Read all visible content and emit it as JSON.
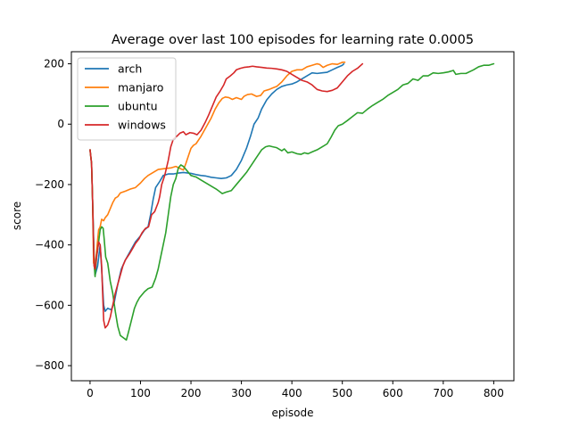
{
  "chart_data": {
    "type": "line",
    "title": "Average over last 100 episodes for learning rate 0.0005",
    "xlabel": "episode",
    "ylabel": "score",
    "xlim": [
      -37,
      840
    ],
    "ylim": [
      -850,
      240
    ],
    "xticks": [
      0,
      100,
      200,
      300,
      400,
      500,
      600,
      700,
      800
    ],
    "yticks": [
      -800,
      -600,
      -400,
      -200,
      0,
      200
    ],
    "grid": false,
    "legend_position": "top-left",
    "series": [
      {
        "name": "arch",
        "color": "#1f77b4",
        "points": [
          [
            0,
            -85
          ],
          [
            3,
            -130
          ],
          [
            5,
            -250
          ],
          [
            8,
            -440
          ],
          [
            10,
            -500
          ],
          [
            15,
            -470
          ],
          [
            20,
            -400
          ],
          [
            23,
            -480
          ],
          [
            27,
            -600
          ],
          [
            30,
            -620
          ],
          [
            35,
            -610
          ],
          [
            42,
            -615
          ],
          [
            48,
            -590
          ],
          [
            55,
            -530
          ],
          [
            62,
            -480
          ],
          [
            70,
            -450
          ],
          [
            80,
            -420
          ],
          [
            90,
            -390
          ],
          [
            100,
            -370
          ],
          [
            108,
            -350
          ],
          [
            115,
            -340
          ],
          [
            120,
            -300
          ],
          [
            125,
            -250
          ],
          [
            130,
            -210
          ],
          [
            138,
            -190
          ],
          [
            145,
            -170
          ],
          [
            155,
            -165
          ],
          [
            165,
            -165
          ],
          [
            175,
            -162
          ],
          [
            185,
            -160
          ],
          [
            200,
            -163
          ],
          [
            210,
            -167
          ],
          [
            220,
            -170
          ],
          [
            230,
            -172
          ],
          [
            240,
            -176
          ],
          [
            250,
            -178
          ],
          [
            260,
            -180
          ],
          [
            270,
            -178
          ],
          [
            280,
            -170
          ],
          [
            290,
            -150
          ],
          [
            300,
            -120
          ],
          [
            310,
            -80
          ],
          [
            318,
            -40
          ],
          [
            325,
            0
          ],
          [
            333,
            20
          ],
          [
            340,
            50
          ],
          [
            350,
            80
          ],
          [
            360,
            100
          ],
          [
            370,
            115
          ],
          [
            380,
            125
          ],
          [
            390,
            130
          ],
          [
            400,
            133
          ],
          [
            410,
            140
          ],
          [
            420,
            150
          ],
          [
            430,
            160
          ],
          [
            440,
            170
          ],
          [
            450,
            168
          ],
          [
            460,
            170
          ],
          [
            470,
            172
          ],
          [
            480,
            180
          ],
          [
            490,
            188
          ],
          [
            500,
            195
          ],
          [
            503,
            200
          ]
        ]
      },
      {
        "name": "manjaro",
        "color": "#ff7f0e",
        "points": [
          [
            0,
            -85
          ],
          [
            3,
            -130
          ],
          [
            5,
            -250
          ],
          [
            7,
            -460
          ],
          [
            10,
            -470
          ],
          [
            13,
            -420
          ],
          [
            17,
            -350
          ],
          [
            20,
            -340
          ],
          [
            23,
            -315
          ],
          [
            27,
            -320
          ],
          [
            30,
            -310
          ],
          [
            35,
            -300
          ],
          [
            40,
            -280
          ],
          [
            45,
            -260
          ],
          [
            50,
            -245
          ],
          [
            55,
            -240
          ],
          [
            60,
            -228
          ],
          [
            70,
            -222
          ],
          [
            80,
            -215
          ],
          [
            90,
            -210
          ],
          [
            100,
            -195
          ],
          [
            108,
            -180
          ],
          [
            115,
            -170
          ],
          [
            125,
            -160
          ],
          [
            135,
            -150
          ],
          [
            145,
            -148
          ],
          [
            160,
            -145
          ],
          [
            170,
            -140
          ],
          [
            180,
            -148
          ],
          [
            185,
            -152
          ],
          [
            190,
            -130
          ],
          [
            195,
            -105
          ],
          [
            200,
            -80
          ],
          [
            205,
            -70
          ],
          [
            210,
            -65
          ],
          [
            220,
            -40
          ],
          [
            230,
            -10
          ],
          [
            240,
            20
          ],
          [
            248,
            50
          ],
          [
            255,
            70
          ],
          [
            262,
            85
          ],
          [
            268,
            90
          ],
          [
            275,
            88
          ],
          [
            282,
            82
          ],
          [
            290,
            88
          ],
          [
            300,
            82
          ],
          [
            305,
            92
          ],
          [
            312,
            98
          ],
          [
            320,
            100
          ],
          [
            330,
            92
          ],
          [
            338,
            95
          ],
          [
            345,
            110
          ],
          [
            355,
            115
          ],
          [
            362,
            120
          ],
          [
            370,
            125
          ],
          [
            380,
            140
          ],
          [
            390,
            160
          ],
          [
            400,
            175
          ],
          [
            410,
            180
          ],
          [
            420,
            180
          ],
          [
            430,
            190
          ],
          [
            440,
            195
          ],
          [
            450,
            200
          ],
          [
            455,
            198
          ],
          [
            462,
            188
          ],
          [
            470,
            195
          ],
          [
            480,
            200
          ],
          [
            490,
            198
          ],
          [
            500,
            205
          ],
          [
            505,
            205
          ]
        ]
      },
      {
        "name": "ubuntu",
        "color": "#2ca02c",
        "points": [
          [
            0,
            -85
          ],
          [
            3,
            -130
          ],
          [
            5,
            -250
          ],
          [
            8,
            -460
          ],
          [
            10,
            -505
          ],
          [
            13,
            -440
          ],
          [
            17,
            -390
          ],
          [
            20,
            -350
          ],
          [
            23,
            -340
          ],
          [
            26,
            -345
          ],
          [
            28,
            -380
          ],
          [
            31,
            -440
          ],
          [
            35,
            -460
          ],
          [
            40,
            -520
          ],
          [
            45,
            -560
          ],
          [
            50,
            -620
          ],
          [
            55,
            -670
          ],
          [
            60,
            -700
          ],
          [
            68,
            -710
          ],
          [
            72,
            -715
          ],
          [
            76,
            -690
          ],
          [
            82,
            -650
          ],
          [
            88,
            -610
          ],
          [
            93,
            -590
          ],
          [
            98,
            -575
          ],
          [
            103,
            -565
          ],
          [
            108,
            -555
          ],
          [
            115,
            -545
          ],
          [
            123,
            -540
          ],
          [
            130,
            -510
          ],
          [
            135,
            -480
          ],
          [
            140,
            -440
          ],
          [
            145,
            -400
          ],
          [
            150,
            -360
          ],
          [
            155,
            -300
          ],
          [
            160,
            -240
          ],
          [
            165,
            -200
          ],
          [
            170,
            -180
          ],
          [
            175,
            -145
          ],
          [
            180,
            -135
          ],
          [
            185,
            -140
          ],
          [
            190,
            -150
          ],
          [
            200,
            -170
          ],
          [
            210,
            -175
          ],
          [
            220,
            -185
          ],
          [
            230,
            -195
          ],
          [
            240,
            -205
          ],
          [
            250,
            -215
          ],
          [
            258,
            -225
          ],
          [
            262,
            -230
          ],
          [
            270,
            -225
          ],
          [
            280,
            -220
          ],
          [
            290,
            -200
          ],
          [
            300,
            -180
          ],
          [
            310,
            -160
          ],
          [
            320,
            -135
          ],
          [
            330,
            -110
          ],
          [
            340,
            -85
          ],
          [
            348,
            -75
          ],
          [
            355,
            -72
          ],
          [
            362,
            -75
          ],
          [
            370,
            -78
          ],
          [
            380,
            -88
          ],
          [
            385,
            -82
          ],
          [
            392,
            -95
          ],
          [
            400,
            -92
          ],
          [
            410,
            -98
          ],
          [
            418,
            -100
          ],
          [
            425,
            -95
          ],
          [
            432,
            -98
          ],
          [
            440,
            -92
          ],
          [
            450,
            -85
          ],
          [
            460,
            -75
          ],
          [
            470,
            -65
          ],
          [
            478,
            -42
          ],
          [
            485,
            -20
          ],
          [
            492,
            -5
          ],
          [
            500,
            0
          ],
          [
            510,
            12
          ],
          [
            520,
            25
          ],
          [
            530,
            38
          ],
          [
            540,
            36
          ],
          [
            550,
            50
          ],
          [
            560,
            62
          ],
          [
            570,
            72
          ],
          [
            580,
            82
          ],
          [
            590,
            95
          ],
          [
            600,
            105
          ],
          [
            610,
            115
          ],
          [
            620,
            130
          ],
          [
            630,
            135
          ],
          [
            640,
            150
          ],
          [
            650,
            145
          ],
          [
            660,
            160
          ],
          [
            670,
            160
          ],
          [
            680,
            170
          ],
          [
            690,
            168
          ],
          [
            700,
            170
          ],
          [
            710,
            173
          ],
          [
            720,
            178
          ],
          [
            725,
            165
          ],
          [
            735,
            168
          ],
          [
            745,
            168
          ],
          [
            760,
            180
          ],
          [
            770,
            190
          ],
          [
            780,
            195
          ],
          [
            790,
            195
          ],
          [
            800,
            200
          ]
        ]
      },
      {
        "name": "windows",
        "color": "#d62728",
        "points": [
          [
            0,
            -85
          ],
          [
            3,
            -130
          ],
          [
            5,
            -250
          ],
          [
            8,
            -470
          ],
          [
            10,
            -480
          ],
          [
            13,
            -440
          ],
          [
            17,
            -390
          ],
          [
            20,
            -400
          ],
          [
            23,
            -470
          ],
          [
            25,
            -560
          ],
          [
            27,
            -650
          ],
          [
            30,
            -675
          ],
          [
            35,
            -665
          ],
          [
            40,
            -640
          ],
          [
            45,
            -600
          ],
          [
            50,
            -560
          ],
          [
            55,
            -530
          ],
          [
            60,
            -500
          ],
          [
            65,
            -470
          ],
          [
            70,
            -450
          ],
          [
            78,
            -430
          ],
          [
            85,
            -410
          ],
          [
            90,
            -395
          ],
          [
            97,
            -380
          ],
          [
            103,
            -360
          ],
          [
            110,
            -345
          ],
          [
            116,
            -340
          ],
          [
            122,
            -300
          ],
          [
            128,
            -290
          ],
          [
            135,
            -260
          ],
          [
            138,
            -240
          ],
          [
            142,
            -200
          ],
          [
            148,
            -170
          ],
          [
            155,
            -120
          ],
          [
            160,
            -75
          ],
          [
            165,
            -50
          ],
          [
            172,
            -40
          ],
          [
            178,
            -30
          ],
          [
            185,
            -25
          ],
          [
            190,
            -35
          ],
          [
            198,
            -28
          ],
          [
            205,
            -30
          ],
          [
            212,
            -35
          ],
          [
            220,
            -20
          ],
          [
            228,
            5
          ],
          [
            235,
            30
          ],
          [
            240,
            50
          ],
          [
            250,
            90
          ],
          [
            258,
            110
          ],
          [
            265,
            130
          ],
          [
            270,
            150
          ],
          [
            278,
            160
          ],
          [
            285,
            170
          ],
          [
            290,
            180
          ],
          [
            298,
            185
          ],
          [
            305,
            188
          ],
          [
            315,
            190
          ],
          [
            322,
            192
          ],
          [
            330,
            190
          ],
          [
            340,
            188
          ],
          [
            350,
            186
          ],
          [
            360,
            185
          ],
          [
            370,
            183
          ],
          [
            380,
            180
          ],
          [
            390,
            175
          ],
          [
            400,
            165
          ],
          [
            410,
            155
          ],
          [
            420,
            145
          ],
          [
            430,
            140
          ],
          [
            440,
            130
          ],
          [
            450,
            115
          ],
          [
            460,
            110
          ],
          [
            470,
            108
          ],
          [
            480,
            112
          ],
          [
            490,
            120
          ],
          [
            500,
            140
          ],
          [
            510,
            160
          ],
          [
            520,
            175
          ],
          [
            530,
            185
          ],
          [
            540,
            200
          ]
        ]
      }
    ]
  }
}
